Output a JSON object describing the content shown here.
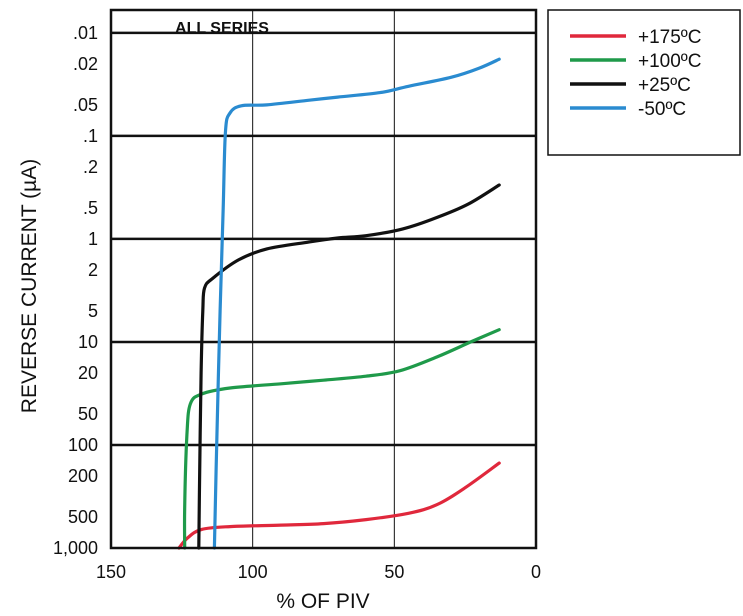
{
  "chart_data": {
    "type": "line",
    "title": "",
    "annotation": "ALL SERIES",
    "xlabel": "% OF PIV",
    "ylabel": "REVERSE CURRENT (µA)",
    "xlim": [
      150,
      0
    ],
    "x_ticks": [
      150,
      100,
      50,
      0
    ],
    "x_tick_labels": [
      "150",
      "100",
      "50",
      "0"
    ],
    "y_scale": "log",
    "y_inverted": true,
    "ylim": [
      0.006,
      1000
    ],
    "y_ticks": [
      0.01,
      0.02,
      0.05,
      0.1,
      0.2,
      0.5,
      1,
      2,
      5,
      10,
      20,
      50,
      100,
      200,
      500,
      1000
    ],
    "y_tick_labels": [
      ".01",
      ".02",
      ".05",
      ".1",
      ".2",
      ".5",
      "1",
      "2",
      "5",
      "10",
      "20",
      "50",
      "100",
      "200",
      "500",
      "1,000"
    ],
    "grid": {
      "major_y": [
        0.01,
        0.1,
        1,
        10,
        100
      ],
      "vertical_x": [
        100,
        50
      ]
    },
    "legend": {
      "placement": "outside-right"
    },
    "series": [
      {
        "name": "+175ºC",
        "color": "#e0283c",
        "points": [
          [
            126,
            1000
          ],
          [
            123,
            800
          ],
          [
            118,
            660
          ],
          [
            108,
            620
          ],
          [
            90,
            600
          ],
          [
            75,
            580
          ],
          [
            60,
            530
          ],
          [
            45,
            460
          ],
          [
            35,
            380
          ],
          [
            25,
            260
          ],
          [
            13,
            150
          ]
        ]
      },
      {
        "name": "+100ºC",
        "color": "#1f9a4a",
        "points": [
          [
            124,
            1000
          ],
          [
            124,
            400
          ],
          [
            123.2,
            80
          ],
          [
            122,
            40
          ],
          [
            118,
            32
          ],
          [
            108,
            28
          ],
          [
            90,
            25.5
          ],
          [
            75,
            23.5
          ],
          [
            60,
            21.5
          ],
          [
            48,
            19
          ],
          [
            35,
            14
          ],
          [
            23,
            10
          ],
          [
            13,
            7.6
          ]
        ]
      },
      {
        "name": "+25ºC",
        "color": "#111111",
        "points": [
          [
            119,
            1000
          ],
          [
            118.8,
            300
          ],
          [
            118.2,
            20
          ],
          [
            117.6,
            5
          ],
          [
            117,
            3
          ],
          [
            114,
            2.4
          ],
          [
            105,
            1.6
          ],
          [
            95,
            1.25
          ],
          [
            80,
            1.07
          ],
          [
            70,
            0.98
          ],
          [
            60,
            0.93
          ],
          [
            47,
            0.8
          ],
          [
            35,
            0.62
          ],
          [
            24,
            0.46
          ],
          [
            13,
            0.3
          ]
        ]
      },
      {
        "name": "-50ºC",
        "color": "#2a8bd0",
        "points": [
          [
            113.5,
            1000
          ],
          [
            112.7,
            100
          ],
          [
            111.5,
            5
          ],
          [
            110.4,
            0.5
          ],
          [
            109.6,
            0.09
          ],
          [
            108,
            0.06
          ],
          [
            104,
            0.051
          ],
          [
            95,
            0.05
          ],
          [
            80,
            0.045
          ],
          [
            70,
            0.042
          ],
          [
            55,
            0.038
          ],
          [
            45,
            0.033
          ],
          [
            30,
            0.027
          ],
          [
            20,
            0.022
          ],
          [
            13,
            0.018
          ]
        ]
      }
    ]
  }
}
